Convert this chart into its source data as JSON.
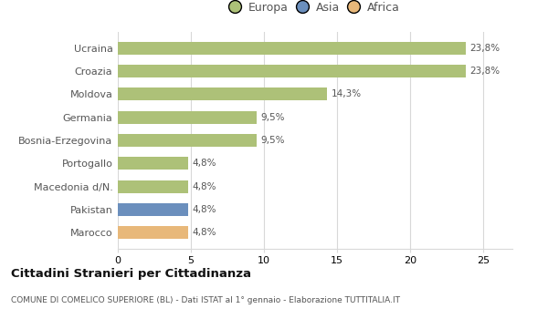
{
  "categories": [
    "Ucraina",
    "Croazia",
    "Moldova",
    "Germania",
    "Bosnia-Erzegovina",
    "Portogallo",
    "Macedonia d/N.",
    "Pakistan",
    "Marocco"
  ],
  "values": [
    23.8,
    23.8,
    14.3,
    9.5,
    9.5,
    4.8,
    4.8,
    4.8,
    4.8
  ],
  "labels": [
    "23,8%",
    "23,8%",
    "14,3%",
    "9,5%",
    "9,5%",
    "4,8%",
    "4,8%",
    "4,8%",
    "4,8%"
  ],
  "bar_colors": [
    "#adc178",
    "#adc178",
    "#adc178",
    "#adc178",
    "#adc178",
    "#adc178",
    "#adc178",
    "#6b8fbd",
    "#e8b87a"
  ],
  "legend_labels": [
    "Europa",
    "Asia",
    "Africa"
  ],
  "legend_colors": [
    "#adc178",
    "#6b8fbd",
    "#e8b87a"
  ],
  "title": "Cittadini Stranieri per Cittadinanza",
  "subtitle": "COMUNE DI COMELICO SUPERIORE (BL) - Dati ISTAT al 1° gennaio - Elaborazione TUTTITALIA.IT",
  "xlim": [
    0,
    27
  ],
  "xticks": [
    0,
    5,
    10,
    15,
    20,
    25
  ],
  "background_color": "#ffffff",
  "grid_color": "#d8d8d8",
  "label_color": "#555555",
  "bar_height": 0.55
}
